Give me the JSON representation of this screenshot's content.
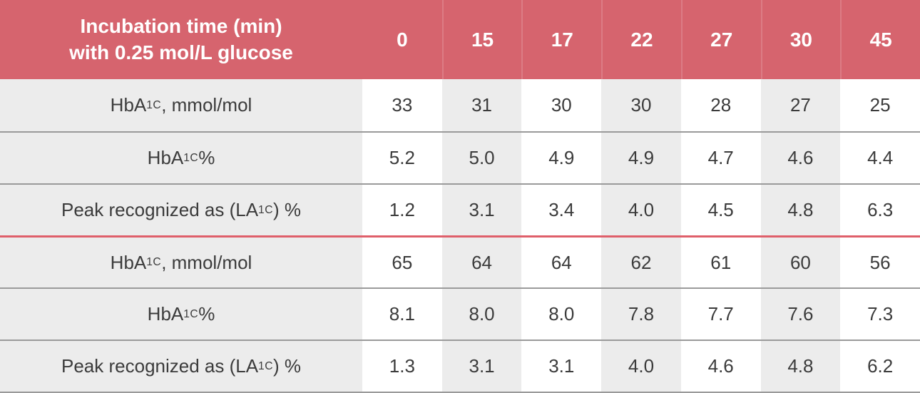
{
  "colors": {
    "header_bg": "#d6646e",
    "header_text": "#ffffff",
    "row_stripe": "#ececec",
    "grid_line": "#9a9a9a",
    "group_separator": "#df5f6a",
    "body_text": "#3b3b3b"
  },
  "chart_data": {
    "type": "table",
    "title": "Incubation time (min) with 0.25 mol/L glucose",
    "header": {
      "title_line1": "Incubation time (min)",
      "title_line2": "with 0.25 mol/L glucose",
      "columns": [
        "0",
        "15",
        "17",
        "22",
        "27",
        "30",
        "45"
      ]
    },
    "groups": [
      {
        "rows": [
          {
            "label_pre": "HbA",
            "label_sub": "1C",
            "label_post": ", mmol/mol",
            "values": [
              "33",
              "31",
              "30",
              "30",
              "28",
              "27",
              "25"
            ]
          },
          {
            "label_pre": "HbA",
            "label_sub": "1C",
            "label_post": " %",
            "values": [
              "5.2",
              "5.0",
              "4.9",
              "4.9",
              "4.7",
              "4.6",
              "4.4"
            ]
          },
          {
            "label_pre": "Peak recognized as (LA",
            "label_sub": "1C",
            "label_post": ") %",
            "values": [
              "1.2",
              "3.1",
              "3.4",
              "4.0",
              "4.5",
              "4.8",
              "6.3"
            ]
          }
        ]
      },
      {
        "rows": [
          {
            "label_pre": "HbA",
            "label_sub": "1C",
            "label_post": ", mmol/mol",
            "values": [
              "65",
              "64",
              "64",
              "62",
              "61",
              "60",
              "56"
            ]
          },
          {
            "label_pre": "HbA",
            "label_sub": "1C",
            "label_post": " %",
            "values": [
              "8.1",
              "8.0",
              "8.0",
              "7.8",
              "7.7",
              "7.6",
              "7.3"
            ]
          },
          {
            "label_pre": "Peak recognized as (LA",
            "label_sub": "1C",
            "label_post": ") %",
            "values": [
              "1.3",
              "3.1",
              "3.1",
              "4.0",
              "4.6",
              "4.8",
              "6.2"
            ]
          }
        ]
      }
    ]
  }
}
